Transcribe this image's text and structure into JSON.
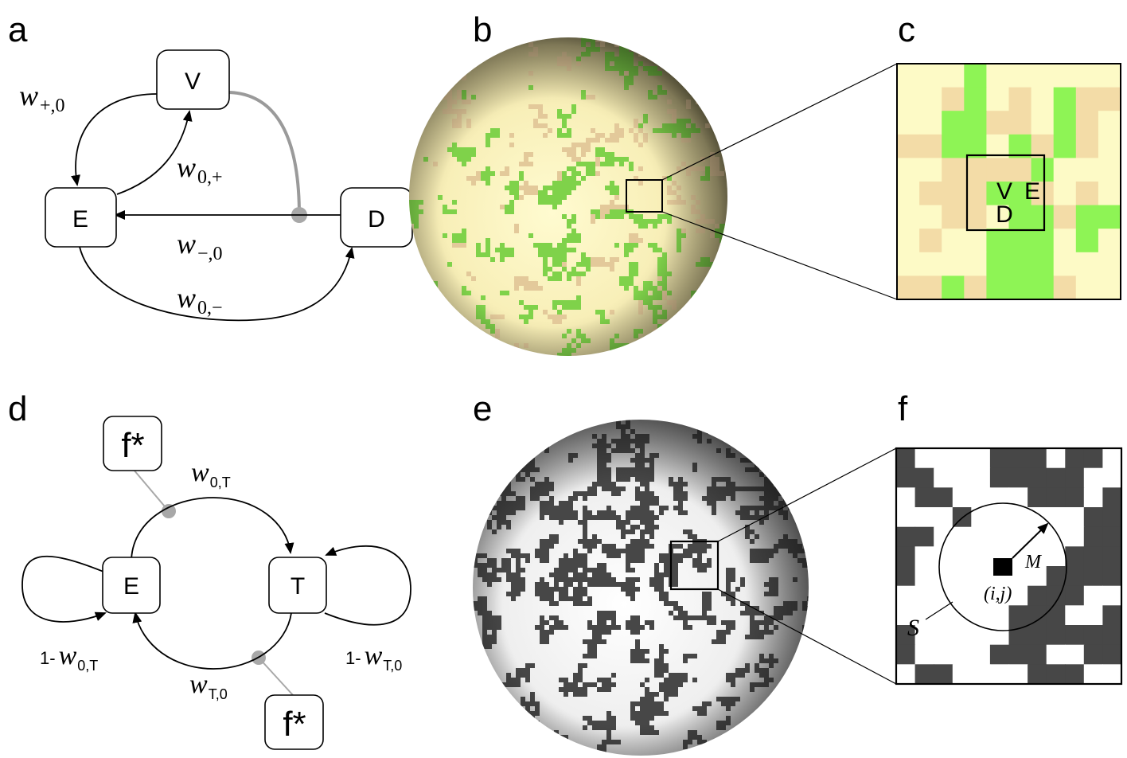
{
  "panel_labels": {
    "a": "a",
    "b": "b",
    "c": "c",
    "d": "d",
    "e": "e",
    "f": "f"
  },
  "panel_a": {
    "nodes": {
      "V": "V",
      "E": "E",
      "D": "D"
    },
    "edges": {
      "w_plus_0": {
        "base": "w",
        "sub": "+,0"
      },
      "w_0_plus": {
        "base": "w",
        "sub": "0,+"
      },
      "w_minus_0": {
        "base": "w",
        "sub": "−,0"
      },
      "w_0_minus": {
        "base": "w",
        "sub": "0,−"
      }
    }
  },
  "panel_c": {
    "cells": {
      "V": "V",
      "E": "E",
      "D": "D"
    },
    "colors": {
      "light": "#fdfac6",
      "tan": "#f3dca7",
      "green": "#8ef455"
    }
  },
  "panel_d": {
    "nodes": {
      "E": "E",
      "T": "T",
      "f_top": "f*",
      "f_bottom": "f*"
    },
    "edges": {
      "w_0_T": {
        "base": "w",
        "sub": "0,T"
      },
      "w_T_0": {
        "base": "w",
        "sub": "T,0"
      },
      "one_minus_w_0_T": {
        "prefix": "1-",
        "base": "w",
        "sub": "0,T"
      },
      "one_minus_w_T_0": {
        "prefix": "1-",
        "base": "w",
        "sub": "T,0"
      }
    }
  },
  "panel_f": {
    "S": "S",
    "M": "M",
    "ij": "(i,j)",
    "colors": {
      "dark": "#474747",
      "light": "#ffffff"
    }
  }
}
